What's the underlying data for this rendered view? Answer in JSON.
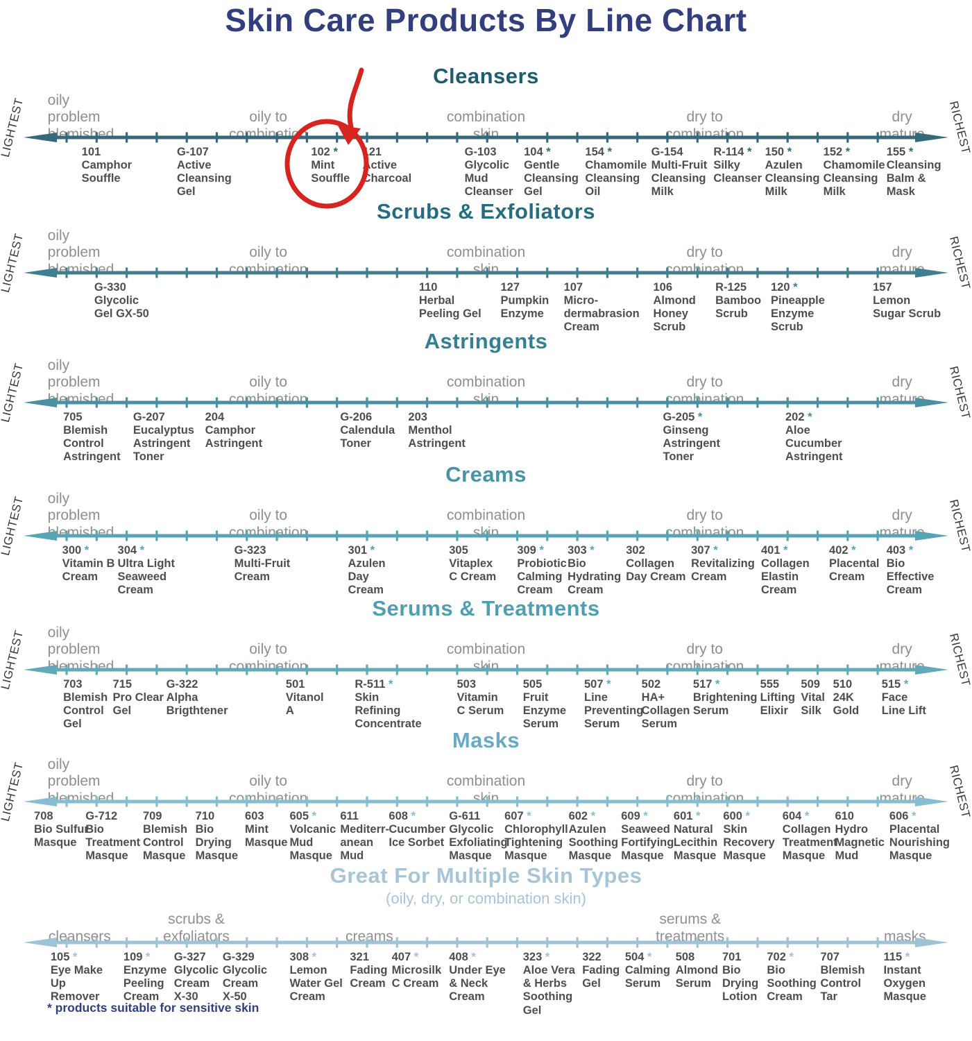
{
  "title": "Skin Care Products By Line Chart",
  "footnote": "* products suitable for sensitive skin",
  "edge_labels": {
    "left": "LIGHTEST",
    "right": "RICHEST"
  },
  "annotation": {
    "highlighted_code": "102",
    "highlighted_name": "Mint Souffle",
    "shape": "red circle with arrow",
    "color": "#d6251f"
  },
  "sections": [
    {
      "id": "cleansers",
      "header": "Cleansers",
      "subtitle": "",
      "color": "#1e5d6e",
      "arrow_color": "#35697a",
      "edge_labels_visible": true,
      "zones": [
        {
          "text": "oily\nproblem\nblemished",
          "x": 4.9,
          "align": "left"
        },
        {
          "text": "oily to\ncombination",
          "x": 27.6
        },
        {
          "text": "combination\nskin",
          "x": 50
        },
        {
          "text": "dry to\ncombination",
          "x": 72.5
        },
        {
          "text": "dry\nmature",
          "x": 92.8
        }
      ],
      "products": [
        {
          "code": "101",
          "star": false,
          "name": "Camphor\nSouffle",
          "x": 8.4
        },
        {
          "code": "G-107",
          "star": false,
          "name": "Active\nCleansing\nGel",
          "x": 18.2
        },
        {
          "code": "102",
          "star": true,
          "name": "Mint\nSouffle",
          "x": 32.0
        },
        {
          "code": "121",
          "star": false,
          "name": "Active\nCharcoal",
          "x": 37.3
        },
        {
          "code": "G-103",
          "star": false,
          "name": "Glycolic\nMud\nCleanser",
          "x": 47.8
        },
        {
          "code": "104",
          "star": true,
          "name": "Gentle\nCleansing\nGel",
          "x": 53.9
        },
        {
          "code": "154",
          "star": true,
          "name": "Chamomile\nCleansing\nOil",
          "x": 60.2
        },
        {
          "code": "G-154",
          "star": false,
          "name": "Multi-Fruit\nCleansing\nMilk",
          "x": 67.0
        },
        {
          "code": "R-114",
          "star": true,
          "name": "Silky\nCleanser",
          "x": 73.4
        },
        {
          "code": "150",
          "star": true,
          "name": "Azulen\nCleansing\nMilk",
          "x": 78.7
        },
        {
          "code": "152",
          "star": true,
          "name": "Chamomile\nCleansing\nMilk",
          "x": 84.7
        },
        {
          "code": "155",
          "star": true,
          "name": "Cleansing\nBalm &\nMask",
          "x": 91.2
        }
      ]
    },
    {
      "id": "scrubs-exfoliators",
      "header": "Scrubs & Exfoliators",
      "subtitle": "",
      "color": "#266e7f",
      "arrow_color": "#3f7f90",
      "edge_labels_visible": true,
      "zones": [
        {
          "text": "oily\nproblem\nblemished",
          "x": 4.9,
          "align": "left"
        },
        {
          "text": "oily to\ncombination",
          "x": 27.6
        },
        {
          "text": "combination\nskin",
          "x": 50
        },
        {
          "text": "dry to\ncombination",
          "x": 72.5
        },
        {
          "text": "dry\nmature",
          "x": 92.8
        }
      ],
      "products": [
        {
          "code": "G-330",
          "star": false,
          "name": "Glycolic\nGel GX-50",
          "x": 9.7
        },
        {
          "code": "110",
          "star": false,
          "name": "Herbal\nPeeling Gel",
          "x": 43.1
        },
        {
          "code": "127",
          "star": false,
          "name": "Pumpkin\nEnzyme",
          "x": 51.5
        },
        {
          "code": "107",
          "star": false,
          "name": "Micro-\ndermabrasion\nCream",
          "x": 58.0
        },
        {
          "code": "106",
          "star": false,
          "name": "Almond\nHoney\nScrub",
          "x": 67.2
        },
        {
          "code": "R-125",
          "star": false,
          "name": "Bamboo\nScrub",
          "x": 73.6
        },
        {
          "code": "120",
          "star": true,
          "name": "Pineapple\nEnzyme\nScrub",
          "x": 79.3
        },
        {
          "code": "157",
          "star": false,
          "name": "Lemon\nSugar Scrub",
          "x": 89.8
        }
      ]
    },
    {
      "id": "astringents",
      "header": "Astringents",
      "subtitle": "",
      "color": "#357f92",
      "arrow_color": "#4b90a2",
      "edge_labels_visible": true,
      "zones": [
        {
          "text": "oily\nproblem\nblemished",
          "x": 4.9,
          "align": "left"
        },
        {
          "text": "oily to\ncombination",
          "x": 27.6
        },
        {
          "text": "combination\nskin",
          "x": 50
        },
        {
          "text": "dry to\ncombination",
          "x": 72.5
        },
        {
          "text": "dry\nmature",
          "x": 92.8
        }
      ],
      "products": [
        {
          "code": "705",
          "star": false,
          "name": "Blemish\nControl\nAstringent",
          "x": 6.5
        },
        {
          "code": "G-207",
          "star": false,
          "name": "Eucalyptus\nAstringent\nToner",
          "x": 13.7
        },
        {
          "code": "204",
          "star": false,
          "name": "Camphor\nAstringent",
          "x": 21.1
        },
        {
          "code": "G-206",
          "star": false,
          "name": "Calendula\nToner",
          "x": 35.0
        },
        {
          "code": "203",
          "star": false,
          "name": "Menthol\nAstringent",
          "x": 42.0
        },
        {
          "code": "G-205",
          "star": true,
          "name": "Ginseng\nAstringent\nToner",
          "x": 68.2
        },
        {
          "code": "202",
          "star": true,
          "name": "Aloe\nCucumber\nAstringent",
          "x": 80.8
        }
      ]
    },
    {
      "id": "creams",
      "header": "Creams",
      "subtitle": "",
      "color": "#4794a6",
      "arrow_color": "#58a4b4",
      "edge_labels_visible": true,
      "zones": [
        {
          "text": "oily\nproblem\nblemished",
          "x": 4.9,
          "align": "left"
        },
        {
          "text": "oily to\ncombination",
          "x": 27.6
        },
        {
          "text": "combination\nskin",
          "x": 50
        },
        {
          "text": "dry to\ncombination",
          "x": 72.5
        },
        {
          "text": "dry\nmature",
          "x": 92.8
        }
      ],
      "products": [
        {
          "code": "300",
          "star": true,
          "name": "Vitamin B\nCream",
          "x": 6.4
        },
        {
          "code": "304",
          "star": true,
          "name": "Ultra Light\nSeaweed\nCream",
          "x": 12.1
        },
        {
          "code": "G-323",
          "star": false,
          "name": "Multi-Fruit\nCream",
          "x": 24.1
        },
        {
          "code": "301",
          "star": true,
          "name": "Azulen\nDay\nCream",
          "x": 35.8
        },
        {
          "code": "305",
          "star": false,
          "name": "Vitaplex\nC Cream",
          "x": 46.2
        },
        {
          "code": "309",
          "star": true,
          "name": "Probiotic\nCalming\nCream",
          "x": 53.2
        },
        {
          "code": "303",
          "star": true,
          "name": "Bio\nHydrating\nCream",
          "x": 58.4
        },
        {
          "code": "302",
          "star": false,
          "name": "Collagen\nDay Cream",
          "x": 64.4
        },
        {
          "code": "307",
          "star": true,
          "name": "Revitalizing\nCream",
          "x": 71.1
        },
        {
          "code": "401",
          "star": true,
          "name": "Collagen\nElastin\nCream",
          "x": 78.3
        },
        {
          "code": "402",
          "star": true,
          "name": "Placental\nCream",
          "x": 85.3
        },
        {
          "code": "403",
          "star": true,
          "name": "Bio\nEffective\nCream",
          "x": 91.2
        }
      ]
    },
    {
      "id": "serums-treatments",
      "header": "Serums & Treatments",
      "subtitle": "",
      "color": "#4f9fb1",
      "arrow_color": "#62aaba",
      "edge_labels_visible": true,
      "zones": [
        {
          "text": "oily\nproblem\nblemished",
          "x": 4.9,
          "align": "left"
        },
        {
          "text": "oily to\ncombination",
          "x": 27.6
        },
        {
          "text": "combination\nskin",
          "x": 50
        },
        {
          "text": "dry to\ncombination",
          "x": 72.5
        },
        {
          "text": "dry\nmature",
          "x": 92.8
        }
      ],
      "products": [
        {
          "code": "703",
          "star": false,
          "name": "Blemish\nControl\nGel",
          "x": 6.5
        },
        {
          "code": "715",
          "star": false,
          "name": "Pro Clear\nGel",
          "x": 11.6
        },
        {
          "code": "G-322",
          "star": false,
          "name": "Alpha\nBrigthtener",
          "x": 17.1
        },
        {
          "code": "501",
          "star": false,
          "name": "Vitanol\nA",
          "x": 29.4
        },
        {
          "code": "R-511",
          "star": true,
          "name": "Skin\nRefining\nConcentrate",
          "x": 36.5
        },
        {
          "code": "503",
          "star": false,
          "name": "Vitamin\nC Serum",
          "x": 47.0
        },
        {
          "code": "505",
          "star": false,
          "name": "Fruit\nEnzyme\nSerum",
          "x": 53.8
        },
        {
          "code": "507",
          "star": true,
          "name": "Line\nPreventing\nSerum",
          "x": 60.1
        },
        {
          "code": "502",
          "star": false,
          "name": "HA+\nCollagen\nSerum",
          "x": 66.0
        },
        {
          "code": "517",
          "star": true,
          "name": "Brightening\nSerum",
          "x": 71.3
        },
        {
          "code": "555",
          "star": false,
          "name": "Lifting\nElixir",
          "x": 78.2
        },
        {
          "code": "509",
          "star": false,
          "name": "Vital\nSilk",
          "x": 82.4
        },
        {
          "code": "510",
          "star": false,
          "name": "24K\nGold",
          "x": 85.7
        },
        {
          "code": "515",
          "star": true,
          "name": "Face\nLine Lift",
          "x": 90.7
        }
      ]
    },
    {
      "id": "masks",
      "header": "Masks",
      "subtitle": "",
      "color": "#68a9c7",
      "arrow_color": "#87bdd3",
      "edge_labels_visible": true,
      "zones": [
        {
          "text": "oily\nproblem\nblemished",
          "x": 4.9,
          "align": "left"
        },
        {
          "text": "oily to\ncombination",
          "x": 27.6
        },
        {
          "text": "combination\nskin",
          "x": 50
        },
        {
          "text": "dry to\ncombination",
          "x": 72.5
        },
        {
          "text": "dry\nmature",
          "x": 92.8
        }
      ],
      "products": [
        {
          "code": "708",
          "star": false,
          "name": "Bio Sulfur\nMasque",
          "x": 3.5
        },
        {
          "code": "G-712",
          "star": false,
          "name": "Bio\nTreatment\nMasque",
          "x": 8.8
        },
        {
          "code": "709",
          "star": false,
          "name": "Blemish\nControl\nMasque",
          "x": 14.7
        },
        {
          "code": "710",
          "star": false,
          "name": "Bio\nDrying\nMasque",
          "x": 20.1
        },
        {
          "code": "603",
          "star": false,
          "name": "Mint\nMasque",
          "x": 25.2
        },
        {
          "code": "605",
          "star": true,
          "name": "Volcanic\nMud\nMasque",
          "x": 29.8
        },
        {
          "code": "611",
          "star": false,
          "name": "Mediterr-\nanean\nMud",
          "x": 35.0
        },
        {
          "code": "608",
          "star": true,
          "name": "Cucumber\nIce Sorbet",
          "x": 40.0
        },
        {
          "code": "G-611",
          "star": false,
          "name": "Glycolic\nExfoliating\nMasque",
          "x": 46.2
        },
        {
          "code": "607",
          "star": true,
          "name": "Chlorophyll\nTightening\nMasque",
          "x": 51.9
        },
        {
          "code": "602",
          "star": true,
          "name": "Azulen\nSoothing\nMasque",
          "x": 58.5
        },
        {
          "code": "609",
          "star": true,
          "name": "Seaweed\nFortifying\nMasque",
          "x": 63.9
        },
        {
          "code": "601",
          "star": true,
          "name": "Natural\nLecithin\nMasque",
          "x": 69.3
        },
        {
          "code": "600",
          "star": true,
          "name": "Skin\nRecovery\nMasque",
          "x": 74.4
        },
        {
          "code": "604",
          "star": true,
          "name": "Collagen\nTreatment\nMasque",
          "x": 80.5
        },
        {
          "code": "610",
          "star": false,
          "name": "Hydro\nMagnetic\nMud",
          "x": 85.9
        },
        {
          "code": "606",
          "star": true,
          "name": "Placental\nNourishing\nMasque",
          "x": 91.5
        }
      ]
    },
    {
      "id": "multiple-skin-types",
      "header": "Great For Multiple Skin Types",
      "subtitle": "(oily, dry, or combination skin)",
      "color": "#a7c5d6",
      "arrow_color": "#9ec3d4",
      "edge_labels_visible": false,
      "zones": [
        {
          "text": "cleansers",
          "x": 8.2
        },
        {
          "text": "scrubs &\nexfoliators",
          "x": 20.2
        },
        {
          "text": "creams",
          "x": 38.0
        },
        {
          "text": "serums &\ntreatments",
          "x": 71.0
        },
        {
          "text": "masks",
          "x": 93.1
        }
      ],
      "products": [
        {
          "code": "105",
          "star": true,
          "name": "Eye Make\nUp\nRemover",
          "x": 5.2
        },
        {
          "code": "109",
          "star": true,
          "name": "Enzyme\nPeeling\nCream",
          "x": 12.7
        },
        {
          "code": "G-327",
          "star": false,
          "name": "Glycolic\nCream\nX-30",
          "x": 17.9
        },
        {
          "code": "G-329",
          "star": false,
          "name": "Glycolic\nCream\nX-50",
          "x": 22.9
        },
        {
          "code": "308",
          "star": true,
          "name": "Lemon\nWater Gel\nCream",
          "x": 29.8
        },
        {
          "code": "321",
          "star": false,
          "name": "Fading\nCream",
          "x": 36.0
        },
        {
          "code": "407",
          "star": true,
          "name": "Microsilk\nC Cream",
          "x": 40.3
        },
        {
          "code": "408",
          "star": true,
          "name": "Under Eye\n& Neck\nCream",
          "x": 46.2
        },
        {
          "code": "323",
          "star": true,
          "name": "Aloe Vera\n& Herbs\nSoothing\nGel",
          "x": 53.8
        },
        {
          "code": "322",
          "star": false,
          "name": "Fading\nGel",
          "x": 59.9
        },
        {
          "code": "504",
          "star": true,
          "name": "Calming\nSerum",
          "x": 64.3
        },
        {
          "code": "508",
          "star": false,
          "name": "Almond\nSerum",
          "x": 69.5
        },
        {
          "code": "701",
          "star": false,
          "name": "Bio\nDrying\nLotion",
          "x": 74.3
        },
        {
          "code": "702",
          "star": true,
          "name": "Bio\nSoothing\nCream",
          "x": 78.9
        },
        {
          "code": "707",
          "star": false,
          "name": "Blemish\nControl\nTar",
          "x": 84.4
        },
        {
          "code": "115",
          "star": true,
          "name": "Instant\nOxygen\nMasque",
          "x": 90.9
        }
      ]
    }
  ]
}
